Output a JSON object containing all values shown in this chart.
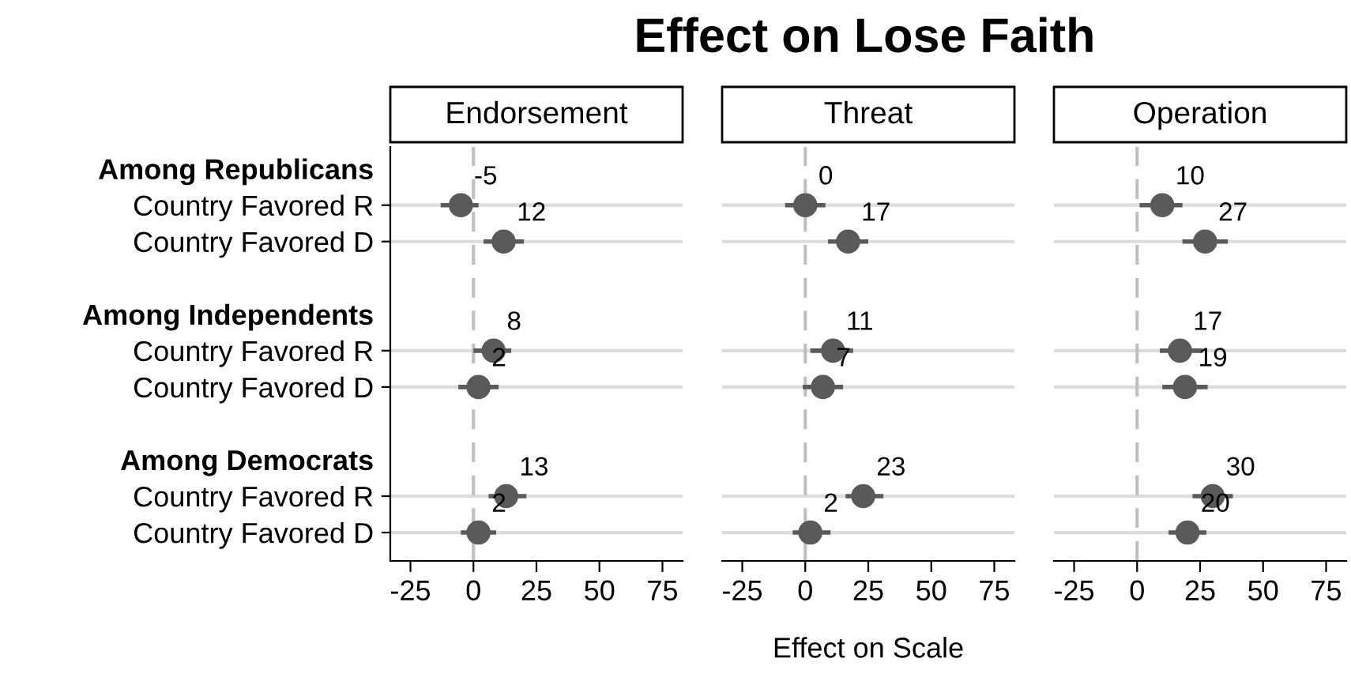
{
  "chart_data": [
    {
      "type": "scatter",
      "title": "Endorsement",
      "annotations": [
        "Effect on Lose Faith"
      ],
      "orientation": "horizontal",
      "categories": [
        "Among Republicans",
        "Country Favored R",
        "Country Favored D",
        null,
        "Among Independents",
        "Country Favored R",
        "Country Favored D",
        null,
        "Among Democrats",
        "Country Favored R",
        "Country Favored D"
      ],
      "series": [
        {
          "color": "#5a5a5a",
          "values": [
            null,
            -5,
            12,
            null,
            null,
            8,
            2,
            null,
            null,
            13,
            2
          ],
          "errors": [
            null,
            [
              -13,
              2
            ],
            [
              4,
              20
            ],
            null,
            null,
            [
              0,
              15
            ],
            [
              -6,
              10
            ],
            null,
            null,
            [
              6,
              21
            ],
            [
              -5,
              9
            ]
          ]
        }
      ],
      "xlim": [
        -33,
        83
      ],
      "xticks": [
        -25,
        0,
        25,
        50,
        75
      ],
      "ref_lines": [
        {
          "axis": "x",
          "value": 0,
          "color": "#c0c0c0",
          "line_style": "dashed"
        }
      ],
      "grid": "y",
      "marker": "circle",
      "data_labels": true
    },
    {
      "type": "scatter",
      "title": "Threat",
      "xlabel": "Effect on Scale",
      "orientation": "horizontal",
      "tick_labels": "x",
      "series": [
        {
          "color": "#5a5a5a",
          "values": [
            null,
            0,
            17,
            null,
            null,
            11,
            7,
            null,
            null,
            23,
            2
          ],
          "errors": [
            null,
            [
              -8,
              8
            ],
            [
              9,
              25
            ],
            null,
            null,
            [
              2,
              19
            ],
            [
              -1,
              15
            ],
            null,
            null,
            [
              16,
              31
            ],
            [
              -5,
              10
            ]
          ]
        }
      ],
      "xlim": [
        -33,
        83
      ],
      "xticks": [
        -25,
        0,
        25,
        50,
        75
      ],
      "ref_lines": [
        {
          "axis": "x",
          "value": 0,
          "color": "#c0c0c0",
          "line_style": "dashed"
        }
      ],
      "grid": "y",
      "marker": "circle",
      "data_labels": true
    },
    {
      "type": "scatter",
      "title": "Operation",
      "orientation": "horizontal",
      "tick_labels": "x",
      "series": [
        {
          "color": "#5a5a5a",
          "values": [
            null,
            10,
            27,
            null,
            null,
            17,
            19,
            null,
            null,
            30,
            20
          ],
          "errors": [
            null,
            [
              1,
              18
            ],
            [
              18,
              36
            ],
            null,
            null,
            [
              9,
              26
            ],
            [
              10,
              28
            ],
            null,
            null,
            [
              22,
              38
            ],
            [
              12.5,
              27.5
            ]
          ]
        }
      ],
      "xlim": [
        -33,
        83
      ],
      "xticks": [
        -25,
        0,
        25,
        50,
        75
      ],
      "ref_lines": [
        {
          "axis": "x",
          "value": 0,
          "color": "#c0c0c0",
          "line_style": "dashed"
        }
      ],
      "grid": "y",
      "marker": "circle",
      "data_labels": true
    }
  ]
}
